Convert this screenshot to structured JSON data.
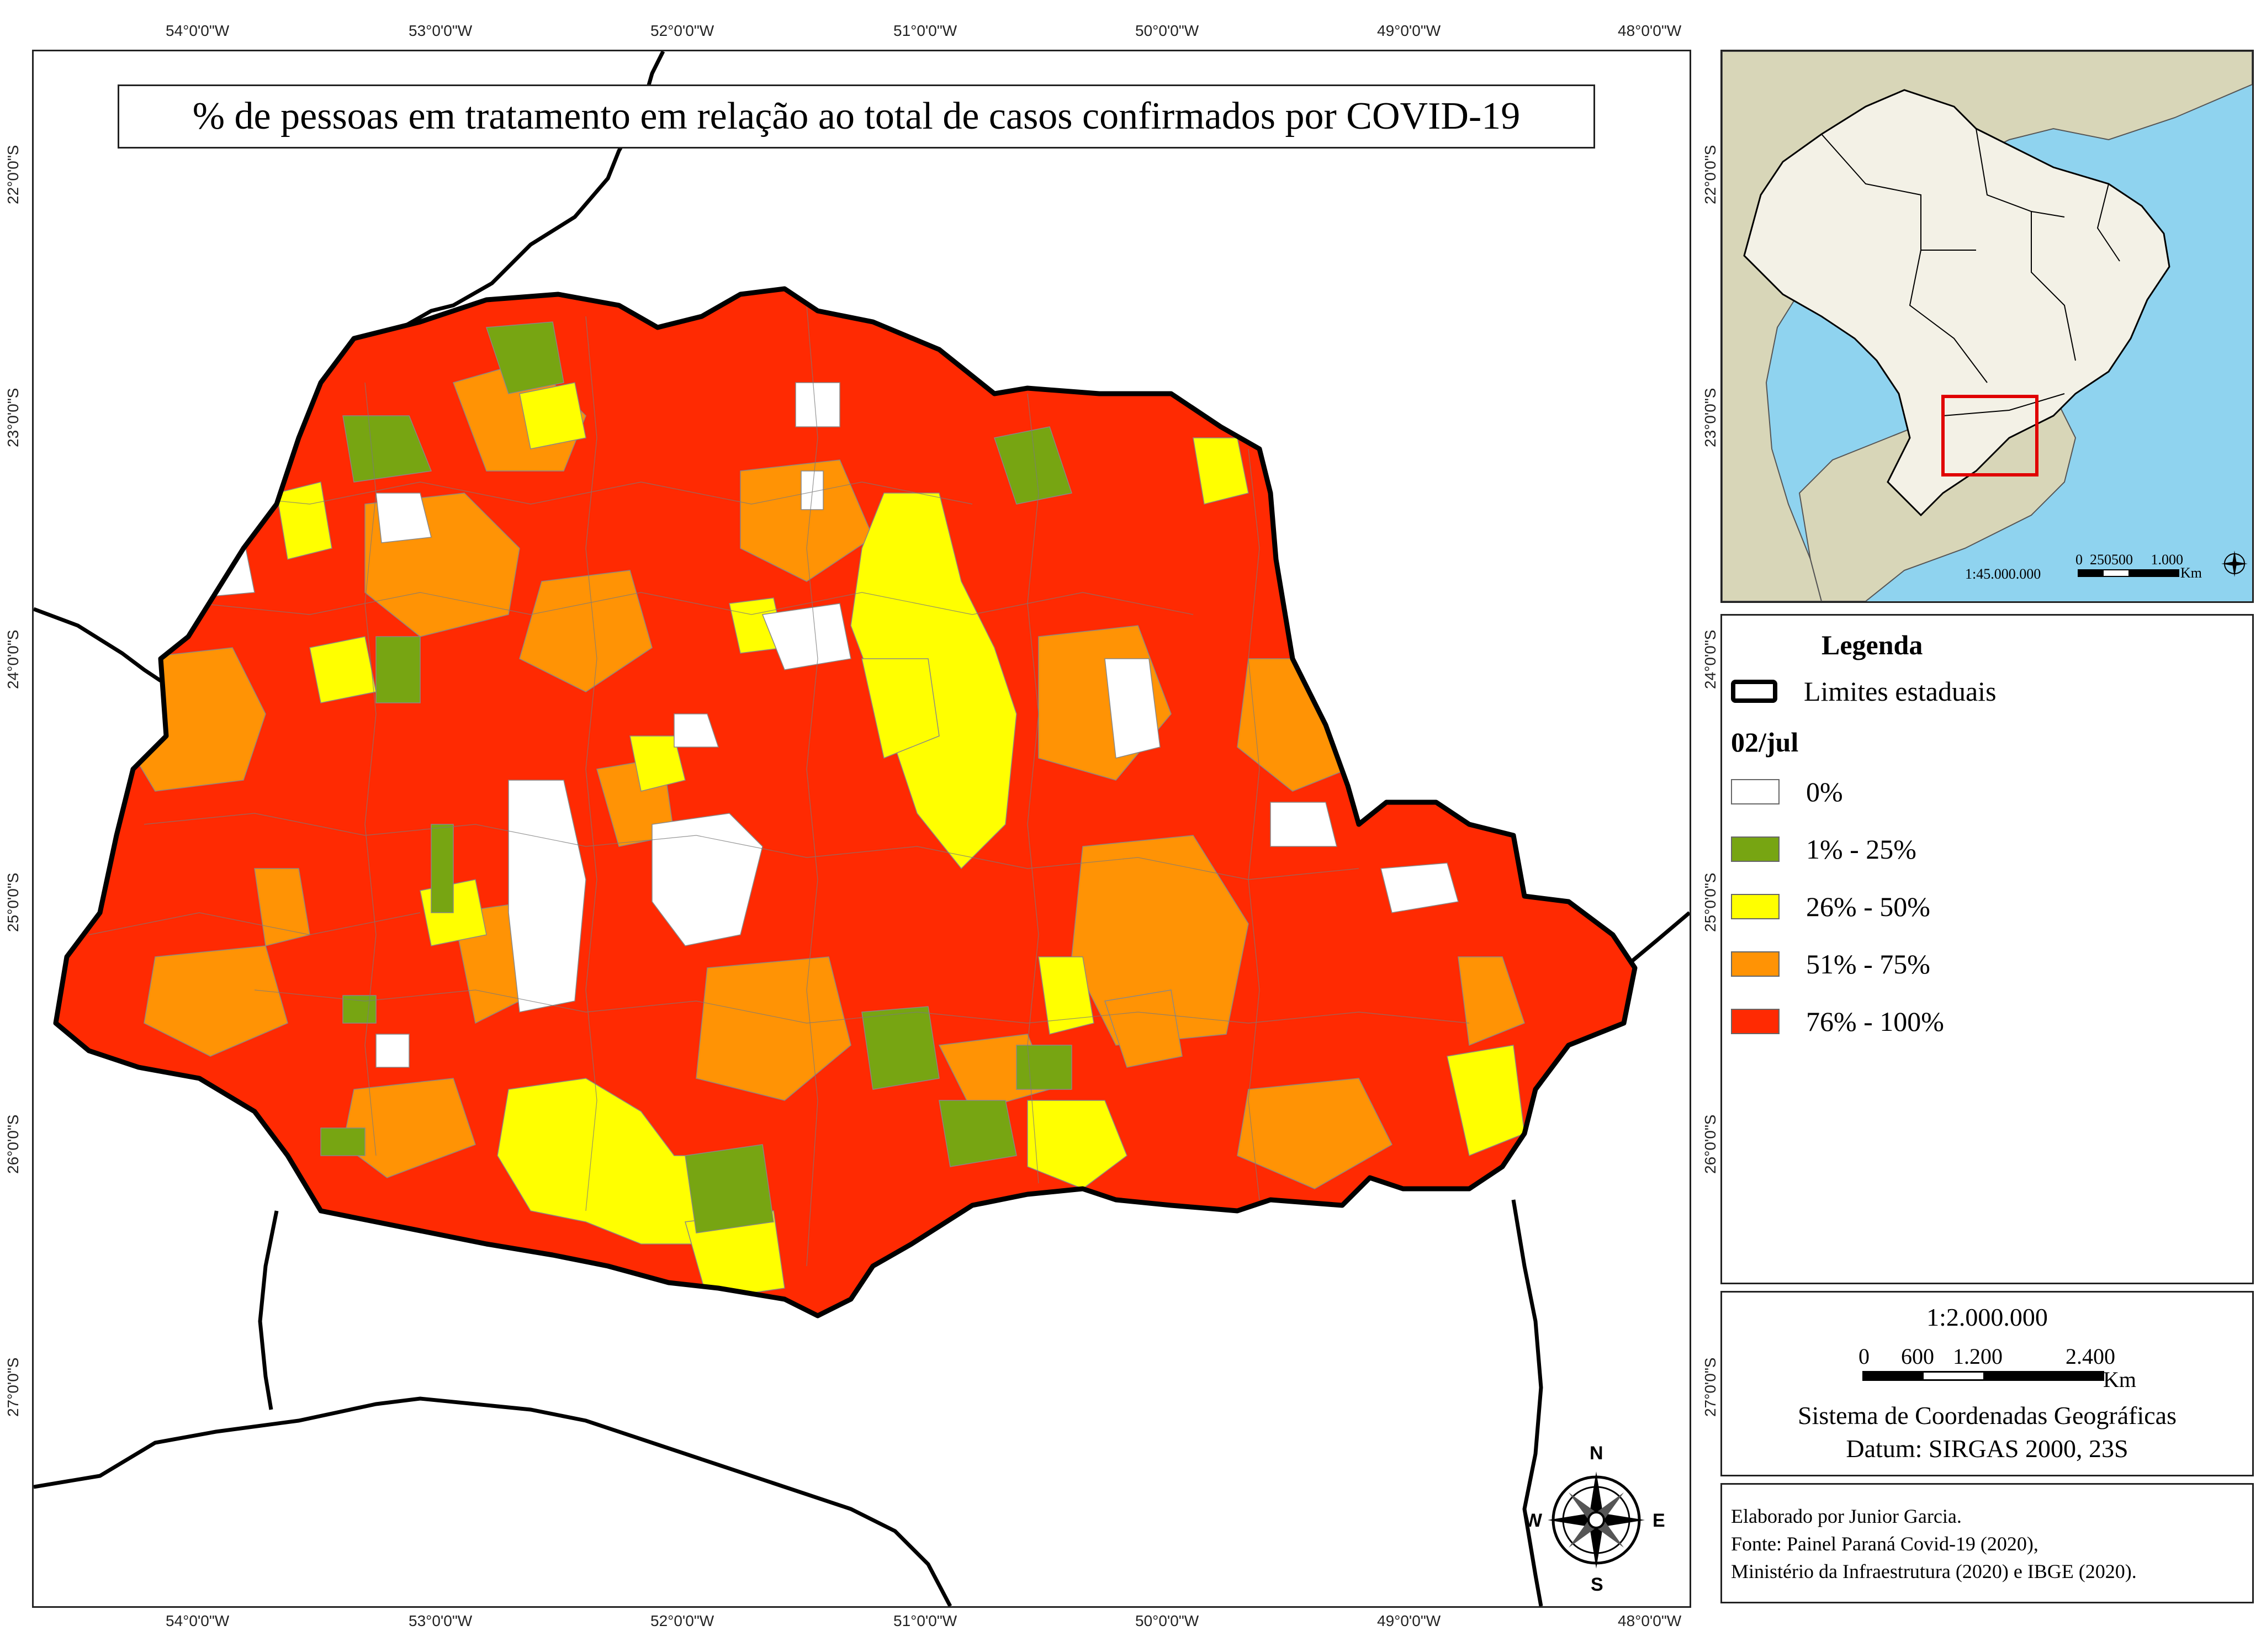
{
  "map": {
    "title": "% de pessoas em tratamento em relação ao total de casos confirmados por COVID-19",
    "lon_ticks": [
      "54°0'0\"W",
      "53°0'0\"W",
      "52°0'0\"W",
      "51°0'0\"W",
      "50°0'0\"W",
      "49°0'0\"W",
      "48°0'0\"W"
    ],
    "lat_ticks": [
      "22°0'0\"S",
      "23°0'0\"S",
      "24°0'0\"S",
      "25°0'0\"S",
      "26°0'0\"S",
      "27°0'0\"S"
    ],
    "north_arrow": {
      "n": "N",
      "s": "S",
      "e": "E",
      "w": "W"
    }
  },
  "inset": {
    "scale_text": "1:45.000.000",
    "scale_numbers": "0  250500     1.000",
    "scale_unit": "Km"
  },
  "legend": {
    "title": "Legenda",
    "boundary_label": "Limites estaduais",
    "date_label": "02/jul",
    "classes": [
      {
        "label": "0%",
        "color": "#ffffff"
      },
      {
        "label": "1% - 25%",
        "color": "#77a512"
      },
      {
        "label": "26% - 50%",
        "color": "#ffff00"
      },
      {
        "label": "51% - 75%",
        "color": "#ff9305"
      },
      {
        "label": "76% - 100%",
        "color": "#ff2a02"
      }
    ]
  },
  "scale": {
    "ratio": "1:2.000.000",
    "n0": "0",
    "n1": "600",
    "n2": "1.200",
    "n3": "2.400",
    "unit": "Km",
    "crs": "Sistema de Coordenadas Geográficas",
    "datum": "Datum: SIRGAS 2000, 23S"
  },
  "credits": {
    "author": "Elaborado por Junior Garcia.",
    "source1": "Fonte: Painel Paraná Covid-19 (2020),",
    "source2": "Ministério da Infraestrutura (2020) e IBGE (2020)."
  },
  "colors": {
    "ocean": "#8fd3ef",
    "south_america": "#d8d6b8",
    "brazil": "#f3f1e6",
    "highlight": "#e00000"
  }
}
